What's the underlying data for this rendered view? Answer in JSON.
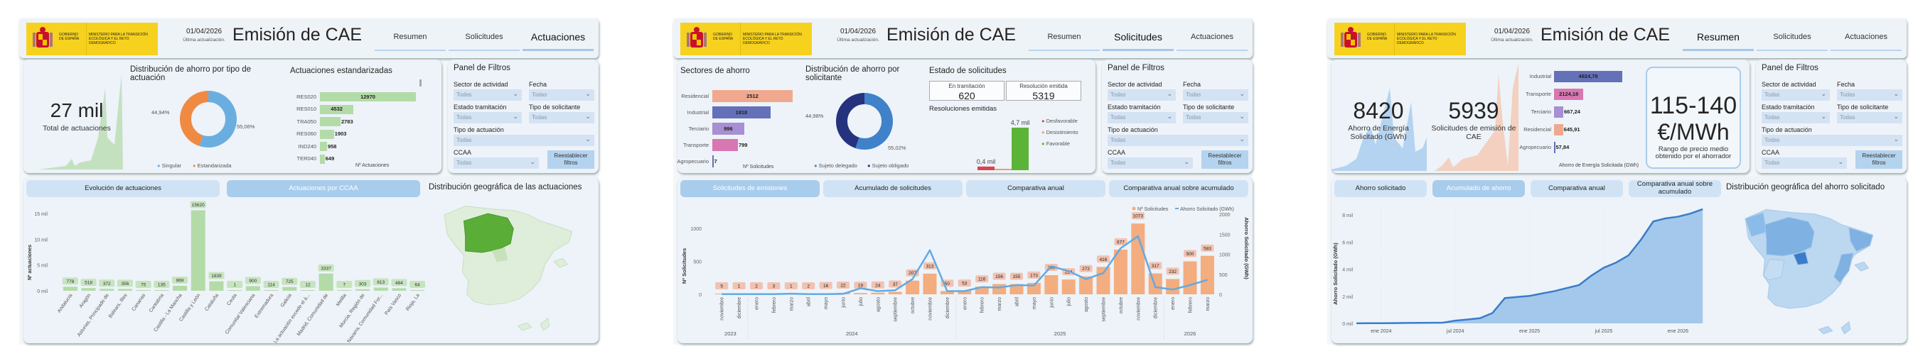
{
  "header": {
    "logo_gobierno": "GOBIERNO DE ESPAÑA",
    "logo_ministerio": "MINISTERIO PARA LA TRANSICIÓN ECOLÓGICA Y EL RETO DEMOGRÁFICO",
    "date": "01/04/2026",
    "date_caption": "Última actualización.",
    "title": "Emisión de CAE",
    "tabs": [
      "Resumen",
      "Solicitudes",
      "Actuaciones"
    ]
  },
  "filters": {
    "title": "Panel de Filtros",
    "sector_label": "Sector de actividad",
    "fecha_label": "Fecha",
    "estado_label": "Estado tramitación",
    "tipo_solicitante_label": "Tipo de solicitante",
    "tipo_actuacion_label": "Tipo de actuación",
    "ccaa_label": "CCAA",
    "value": "Todas",
    "reset_button": "Reestablecer filtros"
  },
  "actuaciones": {
    "selected_tab": 2,
    "kpi_value": "27 mil",
    "kpi_caption": "Total de actuaciones",
    "donut": {
      "title": "Distribución de ahorro por tipo de actuación",
      "slices": [
        {
          "label": "Singular",
          "value": 55.06,
          "text": "55,06%",
          "color": "#6aaee0"
        },
        {
          "label": "Estandarizada",
          "value": 44.94,
          "text": "44,94%",
          "color": "#f08a43"
        }
      ]
    },
    "standardized": {
      "title": "Actuaciones estandarizadas",
      "axis_label": "Nº Actuaciones",
      "items": [
        {
          "label": "RES020",
          "value": 12970
        },
        {
          "label": "RES010",
          "value": 4532
        },
        {
          "label": "TRA050",
          "value": 2783
        },
        {
          "label": "RES060",
          "value": 1903
        },
        {
          "label": "IND240",
          "value": 958
        },
        {
          "label": "TER040",
          "value": 649
        }
      ],
      "color": "#b3dba7"
    },
    "buttons": [
      "Evolución de actuaciones",
      "Actuaciones por CCAA"
    ],
    "selected_button": 1,
    "map_title": "Distribución geográfica de las actuaciones",
    "chart_data": {
      "type": "bar",
      "title": "Actuaciones por CCAA",
      "ylabel": "Nº actuaciones",
      "yticks": [
        "0 mil",
        "5 mil",
        "10 mil",
        "15 mil"
      ],
      "ylim": [
        0,
        16000
      ],
      "categories": [
        "Andalucía",
        "Aragón",
        "Asturias, Principado de",
        "Balears, Illes",
        "Canarias",
        "Cantabria",
        "Castilla - La Mancha",
        "Castilla y León",
        "Cataluña",
        "Ceuta",
        "Comunitat Valenciana",
        "Extremadura",
        "Galicia",
        "La actuación excede el á...",
        "Madrid, Comunidad de",
        "Melilla",
        "Murcia, Región de",
        "Navarra, Comunidad For...",
        "País Vasco",
        "Rioja, La"
      ],
      "values": [
        778,
        518,
        372,
        356,
        75,
        135,
        969,
        15620,
        1839,
        1,
        900,
        114,
        725,
        12,
        3337,
        7,
        303,
        613,
        484,
        64
      ],
      "color": "#b3dba7"
    }
  },
  "solicitudes": {
    "selected_tab": 1,
    "sectors": {
      "title": "Sectores de ahorro",
      "axis_label": "Nº Solicitudes",
      "items": [
        {
          "label": "Residencial",
          "value": 2512,
          "color": "#f0a98e"
        },
        {
          "label": "Industrial",
          "value": 1818,
          "color": "#6471b9"
        },
        {
          "label": "Terciario",
          "value": 996,
          "color": "#a88ed2"
        },
        {
          "label": "Transporte",
          "value": 799,
          "color": "#d877b2"
        },
        {
          "label": "Agropecuario",
          "value": 7,
          "color": "#6471b9"
        }
      ]
    },
    "donut": {
      "title": "Distribución de ahorro por solicitante",
      "slices": [
        {
          "label": "Sujeto delegado",
          "value": 55.02,
          "text": "55,02%",
          "color": "#3f82c9"
        },
        {
          "label": "Sujeto obligado",
          "value": 44.98,
          "text": "44,98%",
          "color": "#25337f"
        }
      ]
    },
    "estado": {
      "title": "Estado de solicitudes",
      "en_tramitacion_label": "En tramitación",
      "en_tramitacion_value": "620",
      "resolucion_label": "Resolución emitida",
      "resolucion_value": "5319"
    },
    "resoluciones": {
      "title": "Resoluciones emitidas",
      "items": [
        {
          "label": "Desfavorable",
          "value": 0.4,
          "text": "0,4 mil",
          "color": "#dc4350"
        },
        {
          "label": "Desistimiento",
          "value": 0.05,
          "text": "",
          "color": "#f39b6b"
        },
        {
          "label": "Favorable",
          "value": 4.7,
          "text": "4,7 mil",
          "color": "#5bb437"
        }
      ]
    },
    "buttons": [
      "Solicitudes de emisiones",
      "Acumulado de solicitudes",
      "Comparativa anual",
      "Comparativa anual sobre acumulado"
    ],
    "selected_button": 0,
    "chart_data": {
      "type": "bar",
      "title": "Solicitudes de emisiones",
      "ylabel": "Nº Solicitudes",
      "y2label": "Ahorro Solicitado (GWh)",
      "yticks": [
        "0",
        "500",
        "1000"
      ],
      "y2ticks": [
        "0",
        "500",
        "1000",
        "1500",
        "2000"
      ],
      "ylim": [
        0,
        1000
      ],
      "y2lim": [
        0,
        2000
      ],
      "legend": [
        "Nº Solicitudes",
        "Ahorro Solicitado (GWh)"
      ],
      "categories": [
        "noviembre",
        "diciembre",
        "enero",
        "febrero",
        "marzo",
        "abril",
        "mayo",
        "junio",
        "julio",
        "agosto",
        "septiembre",
        "octubre",
        "noviembre",
        "diciembre",
        "enero",
        "febrero",
        "marzo",
        "abril",
        "mayo",
        "junio",
        "julio",
        "agosto",
        "septiembre",
        "octubre",
        "noviembre",
        "diciembre",
        "enero",
        "febrero",
        "marzo"
      ],
      "years": [
        {
          "label": "2023",
          "count": 2
        },
        {
          "label": "2024",
          "count": 12
        },
        {
          "label": "2025",
          "count": 12
        },
        {
          "label": "2026",
          "count": 3
        }
      ],
      "series": [
        {
          "name": "Nº Solicitudes",
          "type": "bar",
          "color": "#f4ad7e",
          "values": [
            5,
            1,
            2,
            3,
            1,
            2,
            16,
            22,
            19,
            24,
            37,
            207,
            313,
            50,
            53,
            116,
            156,
            155,
            173,
            290,
            224,
            272,
            416,
            677,
            1073,
            317,
            232,
            500,
            583
          ]
        },
        {
          "name": "Ahorro Solicitado (GWh)",
          "type": "line",
          "color": "#64a9e3",
          "values": [
            5,
            5,
            5,
            5,
            15,
            5,
            5,
            10,
            150,
            80,
            100,
            380,
            1100,
            80,
            80,
            180,
            170,
            230,
            220,
            700,
            580,
            380,
            530,
            1150,
            1450,
            180,
            120,
            230,
            360
          ]
        }
      ]
    }
  },
  "resumen": {
    "selected_tab": 0,
    "kpi1_value": "8420",
    "kpi1_caption": "Ahorro de Energía Solicitado (GWh)",
    "kpi2_value": "5939",
    "kpi2_caption": "Solicitudes de emisión de CAE",
    "sectors": {
      "axis_label": "Ahorro de Energía Solicitada (GWh)",
      "items": [
        {
          "label": "Industrial",
          "value": 4924.78,
          "text": "4924,78",
          "color": "#6471b9"
        },
        {
          "label": "Transporte",
          "value": 2124.18,
          "text": "2124,18",
          "color": "#d877b2"
        },
        {
          "label": "Terciario",
          "value": 667.24,
          "text": "667,24",
          "color": "#a88ed2"
        },
        {
          "label": "Residencial",
          "value": 645.91,
          "text": "645,91",
          "color": "#f0a98e"
        },
        {
          "label": "Agropecuario",
          "value": 57.84,
          "text": "57,84",
          "color": "#6471b9"
        }
      ]
    },
    "price_value": "115-140",
    "price_unit": "€/MWh",
    "price_caption": "Rango de precio medio obtenido por el ahorrador",
    "buttons": [
      "Ahorro solicitado",
      "Acumulado de ahorro",
      "Comparativa anual",
      "Comparativa anual sobre acumulado"
    ],
    "selected_button": 1,
    "map_title": "Distribución geográfica del ahorro solicitado",
    "chart_data": {
      "type": "area",
      "title": "Acumulado de ahorro",
      "ylabel": "Ahorro Solicitado (GWh)",
      "yticks": [
        "0 mil",
        "2 mil",
        "4 mil",
        "6 mil",
        "8 mil"
      ],
      "ylim": [
        0,
        8000
      ],
      "xticks": [
        "ene 2024",
        "jul 2024",
        "ene 2025",
        "jul 2025",
        "ene 2026"
      ],
      "x_start": "nov 2023",
      "x_end": "mar 2026",
      "values": [
        5,
        10,
        15,
        20,
        35,
        40,
        45,
        55,
        205,
        285,
        385,
        765,
        1865,
        1945,
        2025,
        2205,
        2375,
        2605,
        2825,
        3525,
        4105,
        4485,
        5015,
        6165,
        7515,
        7745,
        7865,
        8095,
        8420
      ],
      "color": "#3a7cc9"
    }
  }
}
